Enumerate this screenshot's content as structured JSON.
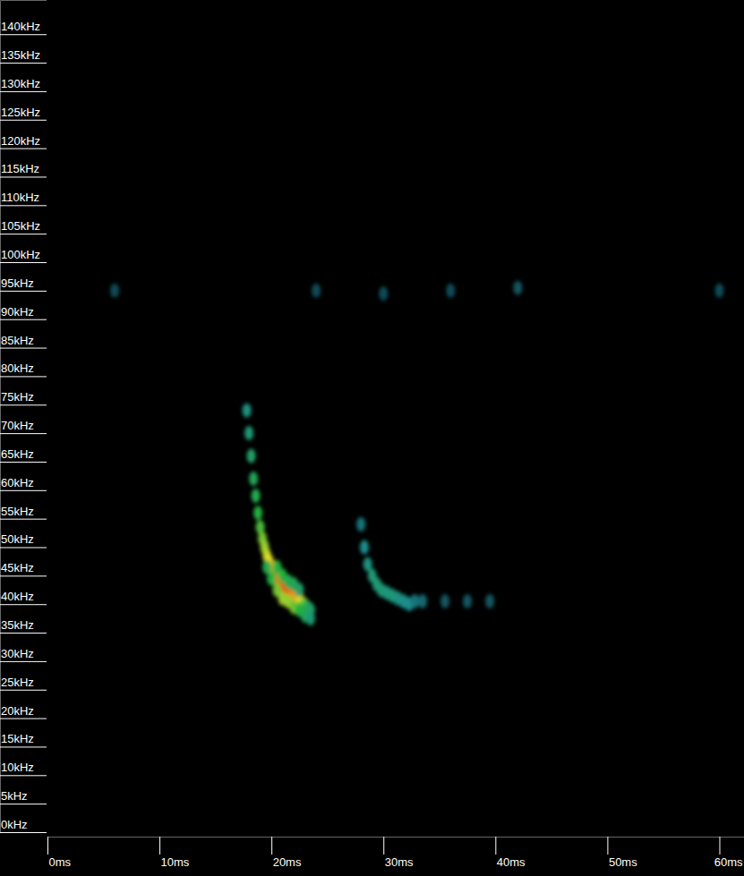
{
  "chart_data": {
    "type": "spectrogram",
    "xlim": [
      0,
      62.2
    ],
    "xticks": [
      {
        "value": 0,
        "label": "0ms"
      },
      {
        "value": 10,
        "label": "10ms"
      },
      {
        "value": 20,
        "label": "20ms"
      },
      {
        "value": 30,
        "label": "30ms"
      },
      {
        "value": 40,
        "label": "40ms"
      },
      {
        "value": 50,
        "label": "50ms"
      },
      {
        "value": 60,
        "label": "60ms"
      }
    ],
    "ylim": [
      0,
      146
    ],
    "yticks": [
      {
        "value": 0,
        "label": "0kHz"
      },
      {
        "value": 5,
        "label": "5kHz"
      },
      {
        "value": 10,
        "label": "10kHz"
      },
      {
        "value": 15,
        "label": "15kHz"
      },
      {
        "value": 20,
        "label": "20kHz"
      },
      {
        "value": 25,
        "label": "25kHz"
      },
      {
        "value": 30,
        "label": "30kHz"
      },
      {
        "value": 35,
        "label": "35kHz"
      },
      {
        "value": 40,
        "label": "40kHz"
      },
      {
        "value": 45,
        "label": "45kHz"
      },
      {
        "value": 50,
        "label": "50kHz"
      },
      {
        "value": 55,
        "label": "55kHz"
      },
      {
        "value": 60,
        "label": "60kHz"
      },
      {
        "value": 65,
        "label": "65kHz"
      },
      {
        "value": 70,
        "label": "70kHz"
      },
      {
        "value": 75,
        "label": "75kHz"
      },
      {
        "value": 80,
        "label": "80kHz"
      },
      {
        "value": 85,
        "label": "85kHz"
      },
      {
        "value": 90,
        "label": "90kHz"
      },
      {
        "value": 95,
        "label": "95kHz"
      },
      {
        "value": 100,
        "label": "100kHz"
      },
      {
        "value": 105,
        "label": "105kHz"
      },
      {
        "value": 110,
        "label": "110kHz"
      },
      {
        "value": 115,
        "label": "115kHz"
      },
      {
        "value": 120,
        "label": "120kHz"
      },
      {
        "value": 125,
        "label": "125kHz"
      },
      {
        "value": 130,
        "label": "130kHz"
      },
      {
        "value": 135,
        "label": "135kHz"
      },
      {
        "value": 140,
        "label": "140kHz"
      }
    ],
    "zlim": [
      0,
      1
    ],
    "x": [
      17.8,
      18.0,
      18.2,
      18.4,
      18.6,
      18.8,
      19.0,
      19.2,
      19.4,
      19.6,
      19.8,
      20.0,
      20.2,
      20.5,
      20.8,
      21.1,
      21.4,
      21.7,
      22.0,
      22.3,
      22.6,
      22.9,
      23.2,
      23.5,
      19.6,
      20.0,
      20.5,
      21.0,
      21.5,
      22.0,
      22.5,
      23.0,
      23.5,
      20.5,
      21.0,
      21.5,
      22.0,
      22.5,
      28.0,
      28.3,
      28.6,
      29.0,
      29.4,
      29.8,
      30.3,
      30.8,
      31.3,
      31.8,
      32.3,
      32.8,
      33.5,
      35.5,
      37.5,
      39.5,
      6,
      24,
      30,
      36,
      42,
      60
    ],
    "y": [
      74,
      70,
      66,
      62,
      59,
      56,
      53.5,
      51.5,
      50,
      48.5,
      47.5,
      46.5,
      45.5,
      44.5,
      43.5,
      43,
      42.5,
      42,
      41.5,
      41,
      40.5,
      40,
      39.5,
      39,
      46.5,
      44.5,
      42.5,
      41,
      40.5,
      39.5,
      39,
      38,
      37.5,
      46.5,
      45,
      44,
      43.5,
      42.5,
      54,
      50,
      47,
      45,
      43.5,
      42.5,
      42,
      41.5,
      41,
      40.5,
      40,
      40.5,
      40.5,
      40.5,
      40.5,
      40.5,
      95,
      95,
      94.5,
      95,
      95.5,
      95
    ],
    "z": [
      0.25,
      0.3,
      0.35,
      0.4,
      0.45,
      0.5,
      0.55,
      0.6,
      0.65,
      0.7,
      0.75,
      0.8,
      0.85,
      0.9,
      0.95,
      1.0,
      1.0,
      0.95,
      0.9,
      0.85,
      0.75,
      0.6,
      0.45,
      0.35,
      0.45,
      0.5,
      0.6,
      0.65,
      0.65,
      0.6,
      0.5,
      0.4,
      0.3,
      0.5,
      0.5,
      0.45,
      0.4,
      0.35,
      0.15,
      0.2,
      0.25,
      0.3,
      0.3,
      0.3,
      0.28,
      0.28,
      0.25,
      0.22,
      0.2,
      0.15,
      0.12,
      0.08,
      0.08,
      0.08,
      0.06,
      0.06,
      0.06,
      0.06,
      0.08,
      0.06
    ]
  }
}
